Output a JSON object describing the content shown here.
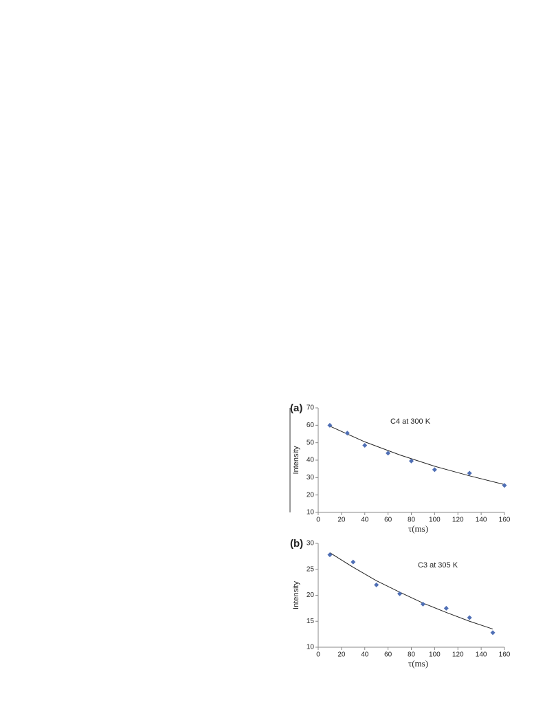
{
  "chart_data": [
    {
      "type": "scatter",
      "panel_label": "(a)",
      "annotation": "C4 at 300 K",
      "x_label": "τ(ms)",
      "y_label": "Intensity",
      "x": [
        10,
        25,
        40,
        60,
        80,
        100,
        130,
        160
      ],
      "values": [
        60,
        55.5,
        48.5,
        44,
        39.5,
        34.5,
        32.5,
        25.5
      ],
      "color": "#4f6fb5",
      "fit_x": [
        10,
        40,
        70,
        100,
        130,
        160
      ],
      "fit_values": [
        59.5,
        50.5,
        43,
        36.5,
        31,
        26
      ],
      "fit_color": "#222222",
      "xlim": [
        0,
        160
      ],
      "xticks": [
        0,
        20,
        40,
        60,
        80,
        100,
        120,
        140,
        160
      ],
      "ylim": [
        10,
        70
      ],
      "yticks": [
        10,
        20,
        30,
        40,
        50,
        60,
        70
      ]
    },
    {
      "type": "scatter",
      "panel_label": "(b)",
      "annotation": "C3 at 305 K",
      "x_label": "τ(ms)",
      "y_label": "Intensity",
      "x": [
        10,
        30,
        50,
        70,
        90,
        110,
        130,
        150
      ],
      "values": [
        27.8,
        26.4,
        22,
        20.3,
        18.3,
        17.5,
        15.7,
        12.8
      ],
      "color": "#4f6fb5",
      "fit_x": [
        10,
        30,
        50,
        70,
        90,
        110,
        130,
        150
      ],
      "fit_values": [
        28.2,
        25.4,
        22.8,
        20.6,
        18.5,
        16.7,
        15,
        13.5
      ],
      "fit_color": "#222222",
      "xlim": [
        0,
        160
      ],
      "xticks": [
        0,
        20,
        40,
        60,
        80,
        100,
        120,
        140,
        160
      ],
      "ylim": [
        10,
        30
      ],
      "yticks": [
        10,
        15,
        20,
        25,
        30
      ]
    }
  ]
}
